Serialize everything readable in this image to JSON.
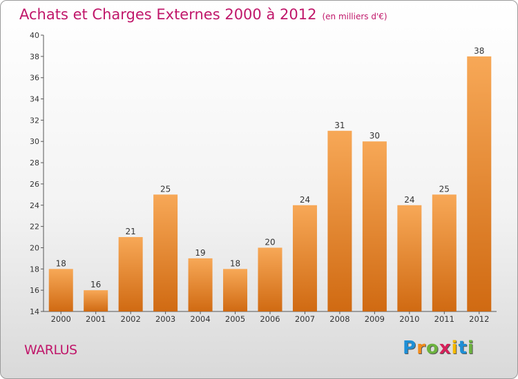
{
  "title": "Achats et Charges Externes 2000 à 2012",
  "subtitle": "(en milliers d'€)",
  "commune": "WARLUS",
  "logo": {
    "letters": [
      "P",
      "r",
      "o",
      "x",
      "i",
      "t",
      "i"
    ],
    "colors": [
      "#1e8fd6",
      "#f28c1c",
      "#6cb33f",
      "#d6205a",
      "#f5b800",
      "#1e8fd6",
      "#6cb33f"
    ]
  },
  "colors": {
    "bar": "#f28a2e",
    "bar_light": "#f7a857",
    "bar_dark": "#d06a12",
    "title": "#c0176a"
  },
  "chart_data": {
    "type": "bar",
    "categories": [
      "2000",
      "2001",
      "2002",
      "2003",
      "2004",
      "2005",
      "2006",
      "2007",
      "2008",
      "2009",
      "2010",
      "2011",
      "2012"
    ],
    "values": [
      18,
      16,
      21,
      25,
      19,
      18,
      20,
      24,
      31,
      30,
      24,
      25,
      38
    ],
    "title": "Achats et Charges Externes 2000 à 2012",
    "subtitle": "(en milliers d'€)",
    "ylim": [
      14,
      40
    ],
    "yticks": [
      14,
      16,
      18,
      20,
      22,
      24,
      26,
      28,
      30,
      32,
      34,
      36,
      38,
      40
    ],
    "grid": false,
    "data_labels": true
  }
}
